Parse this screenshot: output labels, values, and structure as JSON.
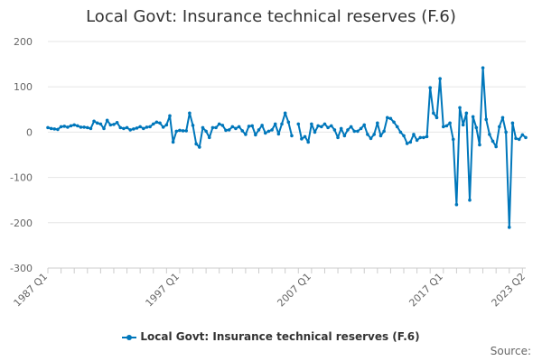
{
  "chart_data": {
    "type": "line",
    "title": "Local Govt: Insurance technical reserves (F.6)",
    "series_name": "Local Govt: Insurance technical reserves (F.6)",
    "start": "1987 Q1",
    "end": "2023 Q2",
    "x_tick_labels": [
      "1987 Q1",
      "1997 Q1",
      "2007 Q1",
      "2017 Q1",
      "2023 Q2"
    ],
    "x_tick_index": [
      0,
      40,
      80,
      120,
      145
    ],
    "ylim": [
      -300,
      200
    ],
    "y_ticks": [
      200,
      100,
      0,
      -100,
      -200,
      -300
    ],
    "grid": true,
    "legend": "bottom",
    "color": "#0077bb",
    "values": [
      10,
      8,
      7,
      6,
      12,
      13,
      11,
      14,
      16,
      14,
      11,
      11,
      10,
      8,
      24,
      20,
      18,
      8,
      26,
      16,
      17,
      21,
      10,
      8,
      10,
      5,
      7,
      9,
      12,
      8,
      11,
      12,
      18,
      22,
      20,
      11,
      16,
      36,
      -22,
      2,
      4,
      3,
      3,
      42,
      15,
      -26,
      -33,
      10,
      2,
      -12,
      10,
      10,
      18,
      15,
      4,
      5,
      12,
      8,
      12,
      3,
      -5,
      13,
      14,
      -6,
      5,
      15,
      -2,
      2,
      5,
      18,
      -4,
      18,
      42,
      22,
      -8,
      null,
      18,
      -15,
      -10,
      -22,
      18,
      0,
      14,
      12,
      18,
      10,
      14,
      5,
      -12,
      8,
      -8,
      5,
      12,
      2,
      2,
      8,
      16,
      -5,
      -14,
      -5,
      20,
      -8,
      2,
      32,
      30,
      22,
      12,
      0,
      -8,
      -25,
      -22,
      -5,
      -18,
      -12,
      -12,
      -10,
      98,
      42,
      32,
      118,
      12,
      14,
      20,
      -16,
      -160,
      54,
      16,
      42,
      -150,
      34,
      10,
      -28,
      142,
      28,
      -5,
      -20,
      -32,
      12,
      32,
      0,
      -210,
      20,
      -14,
      -16,
      -6,
      -12
    ]
  },
  "source_label": "Source:"
}
